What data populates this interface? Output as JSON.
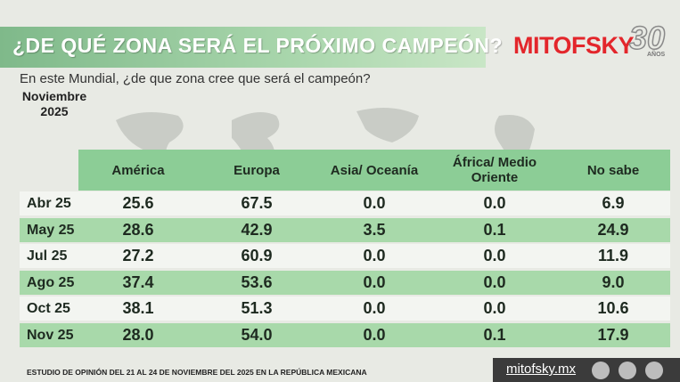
{
  "header": {
    "title": "¿DE QUÉ ZONA SERÁ EL PRÓXIMO CAMPEÓN?",
    "logo": "MITOFSKY",
    "anniversary": "30",
    "anniversary_label": "AÑOS"
  },
  "question": "En este Mundial, ¿de que zona cree que será el campeón?",
  "date": "Noviembre 2025",
  "table": {
    "columns": [
      "América",
      "Europa",
      "Asia/ Oceanía",
      "África/ Medio Oriente",
      "No sabe"
    ],
    "rows": [
      {
        "label": "Abr 25",
        "cells": [
          "25.6",
          "67.5",
          "0.0",
          "0.0",
          "6.9"
        ]
      },
      {
        "label": "May 25",
        "cells": [
          "28.6",
          "42.9",
          "3.5",
          "0.1",
          "24.9"
        ]
      },
      {
        "label": "Jul 25",
        "cells": [
          "27.2",
          "60.9",
          "0.0",
          "0.0",
          "11.9"
        ]
      },
      {
        "label": "Ago 25",
        "cells": [
          "37.4",
          "53.6",
          "0.0",
          "0.0",
          "9.0"
        ]
      },
      {
        "label": "Oct 25",
        "cells": [
          "38.1",
          "51.3",
          "0.0",
          "0.0",
          "10.6"
        ]
      },
      {
        "label": "Nov 25",
        "cells": [
          "28.0",
          "54.0",
          "0.0",
          "0.1",
          "17.9"
        ]
      }
    ]
  },
  "footer": {
    "note": "ESTUDIO DE OPINIÓN DEL 21 AL 24 DE NOVIEMBRE DEL 2025 EN LA REPÚBLICA MEXICANA",
    "site": "mitofsky.mx"
  }
}
